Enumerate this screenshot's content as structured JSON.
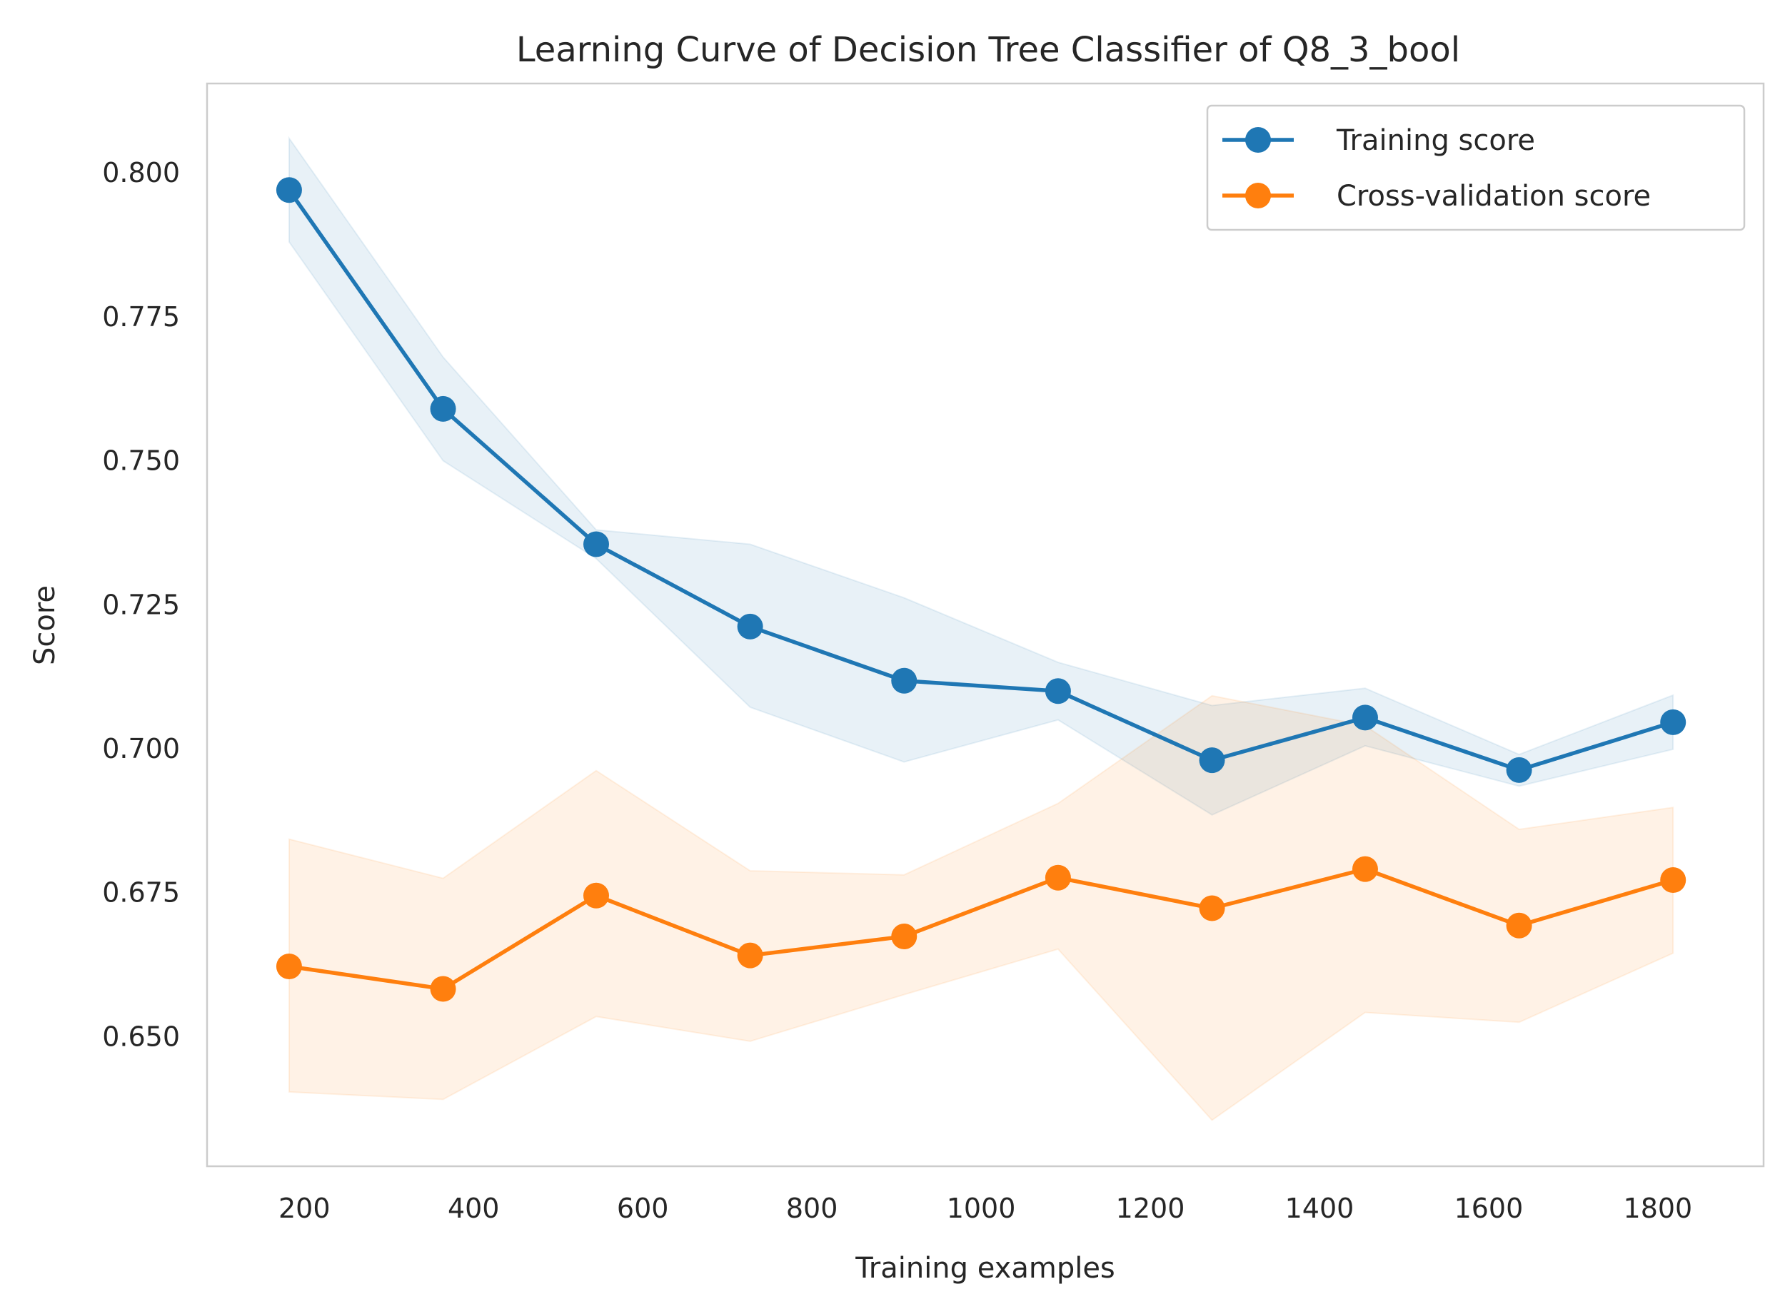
{
  "chart_data": {
    "type": "line",
    "title": "Learning Curve of Decision Tree Classifier of Q8_3_bool",
    "xlabel": "Training examples",
    "ylabel": "Score",
    "xlim": [
      85,
      1925
    ],
    "ylim": [
      0.6275,
      0.8155
    ],
    "xticks": [
      200,
      400,
      600,
      800,
      1000,
      1200,
      1400,
      1600,
      1800
    ],
    "xtick_labels": [
      "200",
      "400",
      "600",
      "800",
      "1000",
      "1200",
      "1400",
      "1600",
      "1800"
    ],
    "yticks": [
      0.65,
      0.675,
      0.7,
      0.725,
      0.75,
      0.775,
      0.8
    ],
    "ytick_labels": [
      "0.650",
      "0.675",
      "0.700",
      "0.725",
      "0.750",
      "0.775",
      "0.800"
    ],
    "grid": false,
    "legend_position": "top-right",
    "x": [
      182,
      364,
      545,
      727,
      909,
      1091,
      1273,
      1454,
      1636,
      1818
    ],
    "series": [
      {
        "name": "Training score",
        "color": "#1f77b4",
        "values": [
          0.797,
          0.759,
          0.7355,
          0.7212,
          0.7118,
          0.71,
          0.698,
          0.7054,
          0.6963,
          0.7046
        ],
        "upper": [
          0.806,
          0.768,
          0.738,
          0.7355,
          0.7262,
          0.715,
          0.7075,
          0.7105,
          0.699,
          0.7093
        ],
        "lower": [
          0.788,
          0.75,
          0.733,
          0.7072,
          0.6977,
          0.705,
          0.6885,
          0.7005,
          0.6935,
          0.6999
        ]
      },
      {
        "name": "Cross-validation score",
        "color": "#ff7f0e",
        "values": [
          0.6622,
          0.6583,
          0.6745,
          0.6641,
          0.6674,
          0.6776,
          0.6723,
          0.6791,
          0.6693,
          0.6772
        ],
        "upper": [
          0.6843,
          0.6775,
          0.6962,
          0.6788,
          0.6781,
          0.6905,
          0.7092,
          0.704,
          0.686,
          0.6898
        ],
        "lower": [
          0.6404,
          0.6391,
          0.6535,
          0.6492,
          0.6573,
          0.6652,
          0.6355,
          0.6542,
          0.6525,
          0.6645
        ]
      }
    ]
  }
}
